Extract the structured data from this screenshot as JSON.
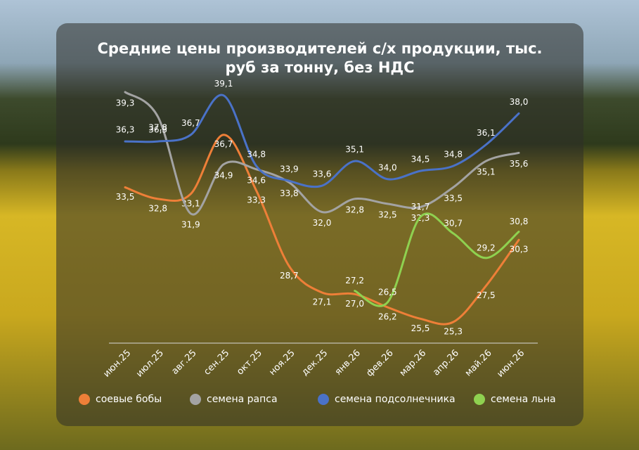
{
  "chart_data": {
    "type": "line",
    "title": "Средние цены производителей с/х продукции, тыс. руб за тонну, без НДС",
    "categories": [
      "июн.25",
      "июл.25",
      "авг.25",
      "сен.25",
      "окт.25",
      "ноя.25",
      "дек.25",
      "янв.26",
      "фев.26",
      "мар.26",
      "апр.26",
      "май.26",
      "июн.26"
    ],
    "series": [
      {
        "name": "соевые бобы",
        "color": "#ee7f38",
        "values": [
          33.5,
          32.8,
          33.1,
          36.7,
          33.3,
          28.7,
          27.1,
          27.0,
          26.2,
          25.5,
          25.3,
          27.5,
          30.3
        ],
        "value_labels": [
          "33,5",
          "32,8",
          "33,1",
          "36,7",
          "33,3",
          "28,7",
          "27,1",
          "27,0",
          "26,2",
          "25,5",
          "25,3",
          "27,5",
          "30,3"
        ]
      },
      {
        "name": "семена рапса",
        "color": "#a3a3a3",
        "values": [
          39.3,
          37.8,
          31.9,
          34.9,
          34.6,
          33.8,
          32.0,
          32.8,
          32.5,
          32.3,
          33.5,
          35.1,
          35.6
        ],
        "value_labels": [
          "39,3",
          "37,8",
          "31,9",
          "34,9",
          "34,6",
          "33,8",
          "32,0",
          "32,8",
          "32,5",
          "32,3",
          "33,5",
          "35,1",
          "35,6"
        ]
      },
      {
        "name": "семена подсолнечника",
        "color": "#4a72c8",
        "values": [
          36.3,
          36.3,
          36.7,
          39.1,
          34.8,
          33.9,
          33.6,
          35.1,
          34.0,
          34.5,
          34.8,
          36.1,
          38.0
        ],
        "value_labels": [
          "36,3",
          "36,3",
          "36,7",
          "39,1",
          "34,8",
          "33,9",
          "33,6",
          "35,1",
          "34,0",
          "34,5",
          "34,8",
          "36,1",
          "38,0"
        ]
      },
      {
        "name": "семена льна",
        "color": "#8fd150",
        "values": [
          null,
          null,
          null,
          null,
          null,
          null,
          null,
          27.2,
          26.5,
          31.7,
          30.7,
          29.2,
          30.8
        ],
        "value_labels": [
          null,
          null,
          null,
          null,
          null,
          null,
          null,
          "27,2",
          "26,5",
          "31,7",
          "30,7",
          "29,2",
          "30,8"
        ]
      }
    ]
  }
}
